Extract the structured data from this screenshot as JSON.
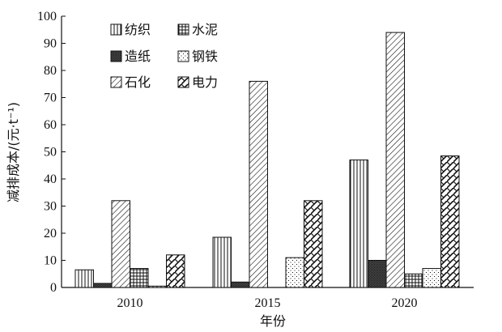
{
  "chart_data": {
    "type": "bar",
    "categories": [
      "2010",
      "2015",
      "2020"
    ],
    "xlabel": "年份",
    "ylabel": "减排成本/(元·t⁻¹)",
    "ylim": [
      0,
      100
    ],
    "yticks": [
      0,
      10,
      20,
      30,
      40,
      50,
      60,
      70,
      80,
      90,
      100
    ],
    "legend": {
      "placement": "top-left",
      "columns": 2
    },
    "grid": false,
    "series": [
      {
        "name": "纺织",
        "pattern": "vertical-lines",
        "values": [
          6.5,
          18.5,
          47
        ]
      },
      {
        "name": "造纸",
        "pattern": "dense-dots",
        "values": [
          1.5,
          2,
          10
        ]
      },
      {
        "name": "石化",
        "pattern": "diagonal-lines",
        "values": [
          32,
          76,
          94
        ]
      },
      {
        "name": "水泥",
        "pattern": "grid",
        "values": [
          7,
          0,
          5
        ]
      },
      {
        "name": "钢铁",
        "pattern": "sparse-dots",
        "values": [
          0.5,
          11,
          7
        ]
      },
      {
        "name": "电力",
        "pattern": "crosshatch-bold",
        "values": [
          12,
          32,
          48.5
        ]
      }
    ]
  }
}
